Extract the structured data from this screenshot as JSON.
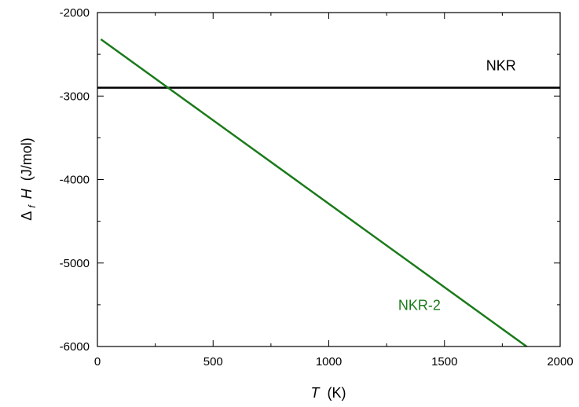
{
  "chart_data": {
    "type": "line",
    "title": "",
    "xlabel": {
      "var": "T",
      "unit": "(K)"
    },
    "ylabel": {
      "delta": "Δ",
      "sub": "f",
      "var": "H",
      "unit": "(J/mol)"
    },
    "xlim": [
      0,
      2000
    ],
    "ylim": [
      -6000,
      -2000
    ],
    "xticks": [
      0,
      500,
      1000,
      1500,
      2000
    ],
    "yticks": [
      -6000,
      -5000,
      -4000,
      -3000,
      -2000
    ],
    "grid": false,
    "series": [
      {
        "name": "NKR",
        "color": "#000000",
        "x": [
          0,
          2000
        ],
        "y": [
          -2900,
          -2900
        ],
        "label_pos": [
          1680,
          -2690
        ]
      },
      {
        "name": "NKR-2",
        "color": "#1a7a1a",
        "x": [
          15,
          1860
        ],
        "y": [
          -2320,
          -6010
        ],
        "label_pos": [
          1300,
          -5560
        ]
      }
    ]
  }
}
